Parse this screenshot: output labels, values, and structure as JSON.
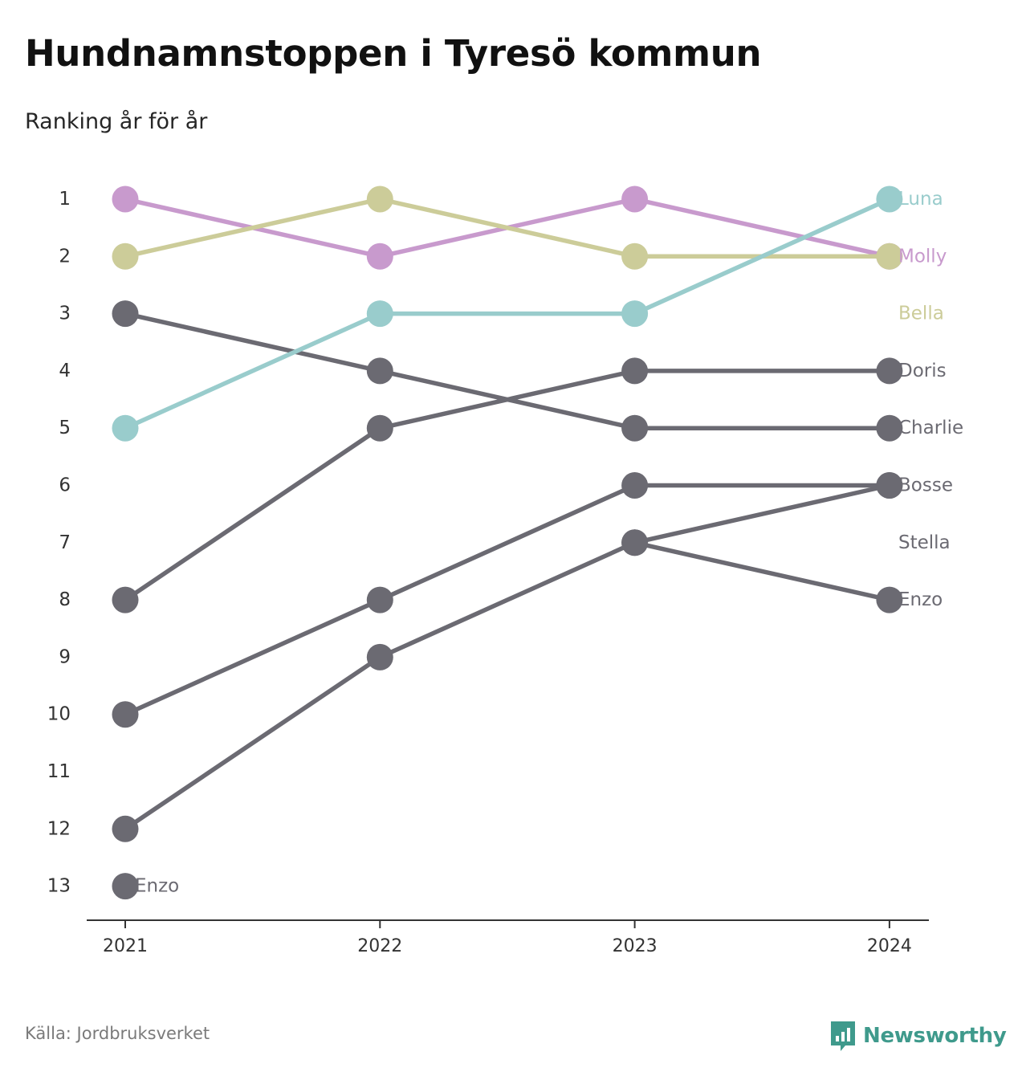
{
  "title": "Hundnamnstoppen i Tyresö kommun",
  "subtitle": "Ranking år för år",
  "source": "Källa: Jordbruksverket",
  "brand": {
    "name": "Newsworthy",
    "icon": "newsworthy-logo-icon",
    "color": "#3f9a8c"
  },
  "chart_data": {
    "type": "line",
    "chart_kind": "bump",
    "x": [
      "2021",
      "2022",
      "2023",
      "2024"
    ],
    "y_ticks": [
      1,
      2,
      3,
      4,
      5,
      6,
      7,
      8,
      9,
      10,
      11,
      12,
      13
    ],
    "ylim": [
      1,
      13
    ],
    "y_reversed": true,
    "grid": false,
    "legend": "direct-labels-right",
    "series": [
      {
        "name": "Molly",
        "values": [
          1,
          2,
          1,
          2
        ],
        "color": "#c89acd"
      },
      {
        "name": "Bella",
        "values": [
          2,
          1,
          2,
          2
        ],
        "color": "#cccc99"
      },
      {
        "name": "Luna",
        "values": [
          5,
          3,
          3,
          1
        ],
        "color": "#99cccc"
      },
      {
        "name": "Doris",
        "values": [
          8,
          5,
          4,
          4
        ],
        "color": "#6b6a72"
      },
      {
        "name": "Charlie",
        "values": [
          3,
          4,
          5,
          5
        ],
        "color": "#6b6a72"
      },
      {
        "name": "Bosse",
        "values": [
          10,
          8,
          6,
          6
        ],
        "color": "#6b6a72"
      },
      {
        "name": "Stella",
        "values": [
          12,
          9,
          7,
          6
        ],
        "color": "#6b6a72"
      },
      {
        "name": "Enzo",
        "values": [
          null,
          null,
          7,
          8
        ],
        "color": "#6b6a72"
      }
    ],
    "right_labels": [
      {
        "text": "Luna",
        "rank": 1,
        "color": "#99cccc"
      },
      {
        "text": "Molly",
        "rank": 2,
        "color": "#c89acd"
      },
      {
        "text": "Bella",
        "rank": 3,
        "color": "#cccc99"
      },
      {
        "text": "Doris",
        "rank": 4,
        "color": "#6b6a72"
      },
      {
        "text": "Charlie",
        "rank": 5,
        "color": "#6b6a72"
      },
      {
        "text": "Bosse",
        "rank": 6,
        "color": "#6b6a72"
      },
      {
        "text": "Stella",
        "rank": 7,
        "color": "#6b6a72"
      },
      {
        "text": "Enzo",
        "rank": 8,
        "color": "#6b6a72"
      }
    ],
    "extra_points": [
      {
        "x": "2021",
        "rank": 13,
        "label": "Enzo",
        "color": "#6b6a72"
      }
    ]
  }
}
